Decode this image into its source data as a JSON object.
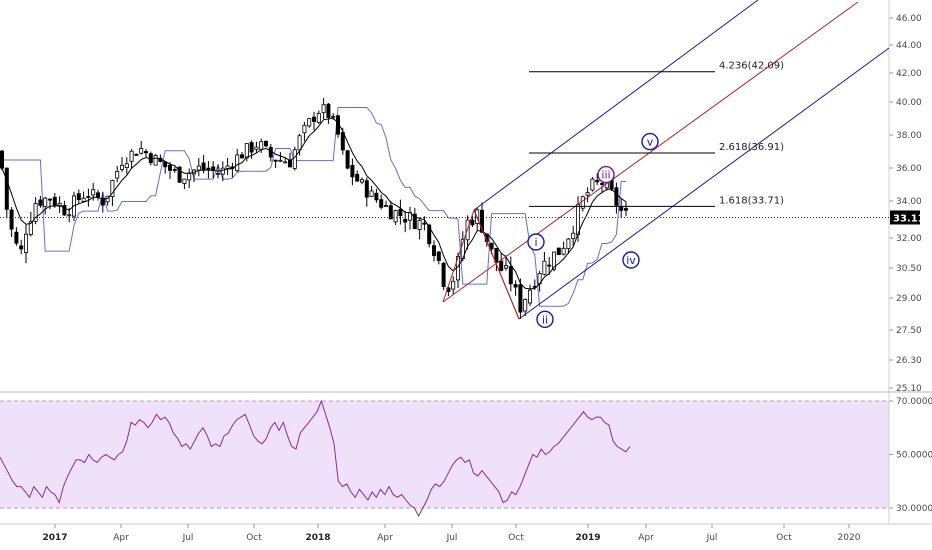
{
  "chart_data": [
    {
      "type": "candlestick",
      "title": "",
      "ylim": [
        25.1,
        46.8
      ],
      "price_axis_labels": [
        "46.00",
        "44.00",
        "42.00",
        "40.00",
        "38.00",
        "36.00",
        "34.00",
        "32.00",
        "30.50",
        "29.00",
        "27.50",
        "26.30",
        "25.10"
      ],
      "price_axis_values": [
        46.0,
        44.0,
        42.0,
        40.0,
        38.0,
        36.0,
        34.0,
        32.0,
        30.5,
        29.0,
        27.5,
        26.3,
        25.1
      ],
      "last_price": "33.11",
      "last_price_value": 33.11,
      "grid": false,
      "x_axis_labels": [
        {
          "label": "2017",
          "bold": true
        },
        {
          "label": "Apr",
          "bold": false
        },
        {
          "label": "Jul",
          "bold": false
        },
        {
          "label": "Oct",
          "bold": false
        },
        {
          "label": "2018",
          "bold": true
        },
        {
          "label": "Apr",
          "bold": false
        },
        {
          "label": "Jul",
          "bold": false
        },
        {
          "label": "Oct",
          "bold": false
        },
        {
          "label": "2019",
          "bold": true
        },
        {
          "label": "Apr",
          "bold": false
        },
        {
          "label": "Jul",
          "bold": false
        },
        {
          "label": "Oct",
          "bold": false
        },
        {
          "label": "2020",
          "bold": false
        }
      ],
      "fibonacci_levels": [
        {
          "label": "4.236(42.09)",
          "value": 42.09
        },
        {
          "label": "2.618(36.91)",
          "value": 36.91
        },
        {
          "label": "1.618(33.71)",
          "value": 33.71
        }
      ],
      "wave_labels": [
        {
          "label": "i",
          "value": 31.8,
          "color": "#1a1aa0"
        },
        {
          "label": "ii",
          "value": 28.0,
          "color": "#1a1aa0"
        },
        {
          "label": "iii",
          "value": 35.6,
          "color": "#6a1a9a"
        },
        {
          "label": "iv",
          "value": 30.9,
          "color": "#1a1aa0"
        },
        {
          "label": "v",
          "value": 37.6,
          "color": "#1a1aa0"
        }
      ],
      "colors": {
        "up_candle": "#ffffff",
        "down_candle": "#000000",
        "ema": "#000000",
        "envelope": "#6b6bd6",
        "pitchfork_outer": "#1a1aa0",
        "pitchfork_median": "#b0202e",
        "price_tag": "#000000"
      }
    },
    {
      "type": "line",
      "title": "",
      "ylim": [
        30,
        70
      ],
      "y_axis_labels": [
        "70.0000",
        "50.0000",
        "30.0000"
      ],
      "y_axis_values": [
        70,
        50,
        30
      ],
      "series": [
        {
          "values": [
            49,
            46,
            43,
            40,
            38,
            38,
            36,
            34,
            38,
            36,
            34,
            38,
            36,
            35,
            32,
            38,
            42,
            45,
            48,
            48,
            47,
            50,
            48,
            47,
            49,
            50,
            49,
            48,
            50,
            51,
            55,
            62,
            61,
            63,
            62,
            60,
            62,
            65,
            63,
            64,
            62,
            58,
            56,
            53,
            54,
            52,
            55,
            58,
            60,
            57,
            53,
            54,
            53,
            57,
            58,
            61,
            63,
            64,
            65,
            61,
            57,
            55,
            54,
            56,
            60,
            62,
            59,
            62,
            57,
            53,
            52,
            58,
            60,
            62,
            64,
            66,
            70,
            65,
            60,
            54,
            40,
            38,
            39,
            36,
            34,
            37,
            35,
            33,
            36,
            34,
            37,
            35,
            38,
            35,
            34,
            35,
            33,
            31,
            30,
            27,
            30,
            33,
            37,
            39,
            38,
            40,
            43,
            46,
            48,
            49,
            47,
            48,
            43,
            42,
            44,
            42,
            40,
            38,
            36,
            32,
            33,
            36,
            35,
            38,
            42,
            46,
            50,
            49,
            52,
            50,
            51,
            53,
            54,
            56,
            58,
            60,
            62,
            64,
            66,
            64,
            63,
            64,
            64,
            62,
            61,
            55,
            53,
            52,
            51,
            53
          ]
        }
      ],
      "colors": {
        "line": "#8a2a9a",
        "band_fill": "#f0e1fa",
        "band_border": "#b89ad0"
      }
    }
  ]
}
